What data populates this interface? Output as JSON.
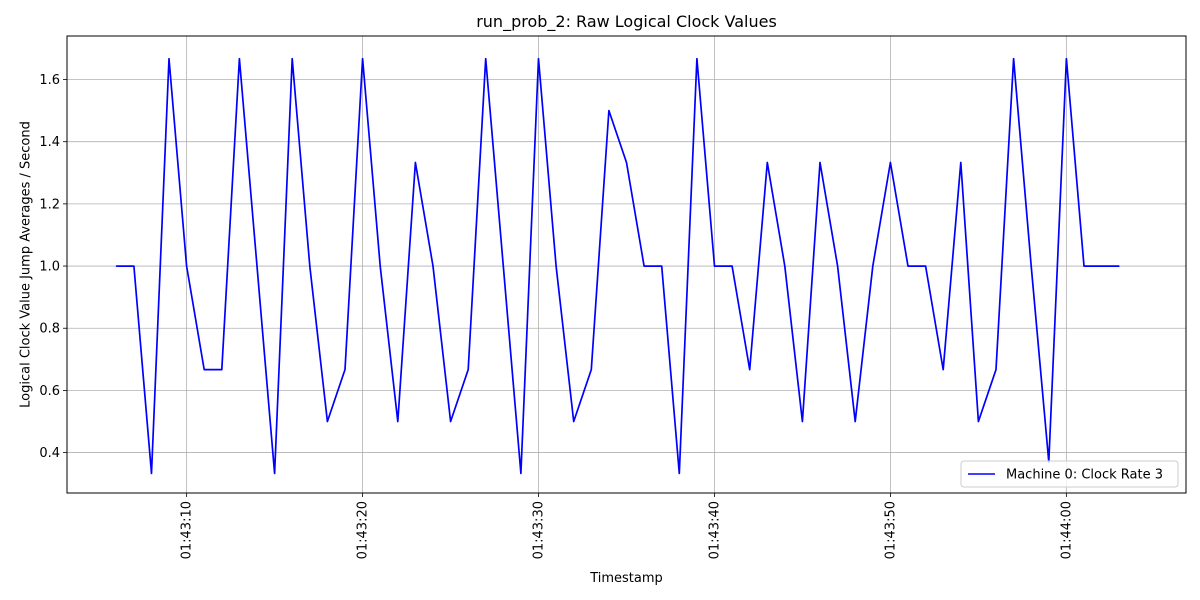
{
  "chart_data": {
    "type": "line",
    "title": "run_prob_2: Raw Logical Clock Values",
    "xlabel": "Timestamp",
    "ylabel": "Logical Clock Value Jump Averages / Second",
    "x_tick_labels": [
      "01:43:10",
      "01:43:20",
      "01:43:30",
      "01:43:40",
      "01:43:50",
      "01:44:00"
    ],
    "x_tick_values": [
      "01:43:10",
      "01:43:20",
      "01:43:30",
      "01:43:40",
      "01:43:50",
      "01:44:00"
    ],
    "y_ticks": [
      0.4,
      0.6,
      0.8,
      1.0,
      1.2,
      1.4,
      1.6
    ],
    "y_tick_labels": [
      "0.4",
      "0.6",
      "0.8",
      "1.0",
      "1.2",
      "1.4",
      "1.6"
    ],
    "xlim": [
      "01:43:03.2",
      "01:44:06.8"
    ],
    "ylim": [
      0.27,
      1.74
    ],
    "grid": true,
    "legend_position": "lower-right",
    "series": [
      {
        "name": "Machine 0: Clock Rate 3",
        "color": "#0000ff",
        "x": [
          "01:43:06",
          "01:43:07",
          "01:43:08",
          "01:43:09",
          "01:43:10",
          "01:43:11",
          "01:43:12",
          "01:43:13",
          "01:43:14",
          "01:43:15",
          "01:43:16",
          "01:43:17",
          "01:43:18",
          "01:43:19",
          "01:43:20",
          "01:43:21",
          "01:43:22",
          "01:43:23",
          "01:43:24",
          "01:43:25",
          "01:43:26",
          "01:43:27",
          "01:43:28",
          "01:43:29",
          "01:43:30",
          "01:43:31",
          "01:43:32",
          "01:43:33",
          "01:43:34",
          "01:43:35",
          "01:43:36",
          "01:43:37",
          "01:43:38",
          "01:43:39",
          "01:43:40",
          "01:43:41",
          "01:43:42",
          "01:43:43",
          "01:43:44",
          "01:43:45",
          "01:43:46",
          "01:43:47",
          "01:43:48",
          "01:43:49",
          "01:43:50",
          "01:43:51",
          "01:43:52",
          "01:43:53",
          "01:43:54",
          "01:43:55",
          "01:43:56",
          "01:43:57",
          "01:43:58",
          "01:43:59",
          "01:44:00",
          "01:44:01",
          "01:44:02",
          "01:44:03"
        ],
        "y": [
          1.0,
          1.0,
          0.333,
          1.667,
          1.0,
          0.667,
          0.667,
          1.667,
          1.0,
          0.333,
          1.667,
          1.0,
          0.5,
          0.667,
          1.667,
          1.0,
          0.5,
          1.333,
          1.0,
          0.5,
          0.667,
          1.667,
          1.0,
          0.333,
          1.667,
          1.0,
          0.5,
          0.667,
          1.5,
          1.333,
          1.0,
          1.0,
          0.333,
          1.667,
          1.0,
          1.0,
          0.667,
          1.333,
          1.0,
          0.5,
          1.333,
          1.0,
          0.5,
          1.0,
          1.333,
          1.0,
          1.0,
          0.667,
          1.333,
          0.5,
          0.667,
          1.667,
          1.0,
          0.37,
          1.667,
          1.0,
          1.0,
          1.0
        ]
      }
    ]
  }
}
